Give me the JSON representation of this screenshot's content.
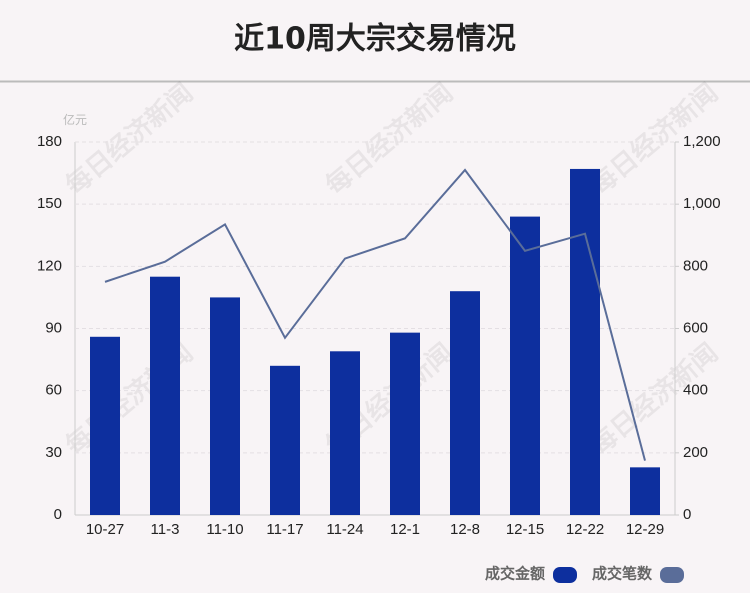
{
  "chart_data": {
    "type": "bar-line",
    "title": "近10周大宗交易情况",
    "y_unit": "亿元",
    "watermark": "每日经济新闻",
    "categories": [
      "10-27",
      "11-3",
      "11-10",
      "11-17",
      "11-24",
      "12-1",
      "12-8",
      "12-15",
      "12-22",
      "12-29"
    ],
    "series": [
      {
        "name": "成交金额",
        "type": "bar",
        "color": "#0d2f9e",
        "values": [
          86,
          115,
          105,
          72,
          79,
          88,
          108,
          144,
          167,
          23
        ]
      },
      {
        "name": "成交笔数",
        "type": "line",
        "axis": "y2",
        "color": "#5a6d99",
        "values": [
          750,
          815,
          935,
          570,
          825,
          890,
          1110,
          850,
          905,
          175
        ]
      }
    ],
    "ylim": [
      0,
      180
    ],
    "yticks": [
      0,
      30,
      60,
      90,
      120,
      150,
      180
    ],
    "y2lim": [
      0,
      1200
    ],
    "y2ticks": [
      0,
      200,
      400,
      600,
      800,
      {
        "value": 1000,
        "label": "1,000"
      },
      {
        "value": 1200,
        "label": "1,200"
      }
    ],
    "grid": true
  }
}
